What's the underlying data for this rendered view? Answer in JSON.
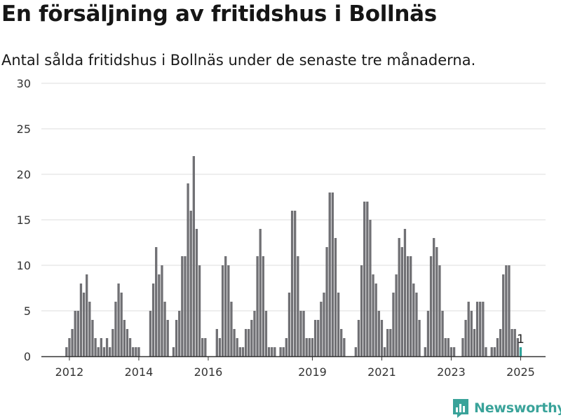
{
  "title": "En försäljning av fritidshus i Bollnäs",
  "subtitle": "Antal sålda fritidshus i Bollnäs under de senaste tre månaderna.",
  "brand": "Newsworthy",
  "colors": {
    "bar": "#707074",
    "highlight": "#2fa39a",
    "grid": "#dcdcdc",
    "axis": "#333333",
    "brand": "#3aa39a"
  },
  "chart_data": {
    "type": "bar",
    "title": "En försäljning av fritidshus i Bollnäs",
    "subtitle": "Antal sålda fritidshus i Bollnäs under de senaste tre månaderna.",
    "xlabel": "",
    "ylabel": "",
    "ylim": [
      0,
      30
    ],
    "yticks": [
      0,
      5,
      10,
      15,
      20,
      25,
      30
    ],
    "grid": true,
    "start": "2011-11",
    "x_tick_labels": [
      {
        "label": "2012",
        "month": "2012-01"
      },
      {
        "label": "2014",
        "month": "2014-01"
      },
      {
        "label": "2016",
        "month": "2016-01"
      },
      {
        "label": "2019",
        "month": "2019-01"
      },
      {
        "label": "2021",
        "month": "2021-01"
      },
      {
        "label": "2023",
        "month": "2023-01"
      },
      {
        "label": "2025",
        "month": "2025-01"
      }
    ],
    "values": [
      0,
      1,
      2,
      3,
      5,
      5,
      8,
      7,
      9,
      6,
      4,
      2,
      1,
      2,
      1,
      2,
      1,
      3,
      6,
      8,
      7,
      4,
      3,
      2,
      1,
      1,
      1,
      0,
      0,
      0,
      5,
      8,
      12,
      9,
      10,
      6,
      4,
      0,
      1,
      4,
      5,
      11,
      11,
      19,
      16,
      22,
      14,
      10,
      2,
      2,
      0,
      0,
      0,
      3,
      2,
      10,
      11,
      10,
      6,
      3,
      2,
      1,
      1,
      3,
      3,
      4,
      5,
      11,
      14,
      11,
      5,
      1,
      1,
      1,
      0,
      1,
      1,
      2,
      7,
      16,
      16,
      11,
      5,
      5,
      2,
      2,
      2,
      4,
      4,
      6,
      7,
      12,
      18,
      18,
      13,
      7,
      3,
      2,
      0,
      0,
      0,
      1,
      4,
      10,
      17,
      17,
      15,
      9,
      8,
      5,
      4,
      1,
      3,
      3,
      7,
      9,
      13,
      12,
      14,
      11,
      11,
      8,
      7,
      4,
      0,
      1,
      5,
      11,
      13,
      12,
      10,
      5,
      2,
      2,
      1,
      1,
      0,
      0,
      2,
      4,
      6,
      5,
      3,
      6,
      6,
      6,
      1,
      0,
      1,
      1,
      2,
      3,
      9,
      10,
      10,
      3,
      3,
      2,
      1
    ],
    "highlight_last": true,
    "last_label": "1"
  }
}
